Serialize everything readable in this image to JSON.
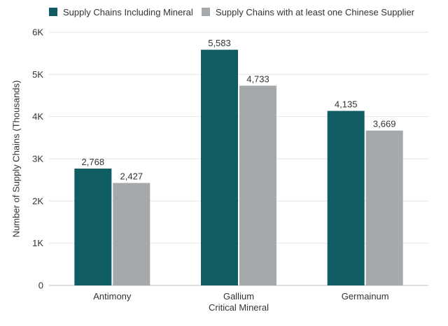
{
  "chart_data": {
    "type": "bar",
    "title": "",
    "xlabel": "Critical Mineral",
    "ylabel": "Number of Supply Chains (Thousands)",
    "categories": [
      "Antimony",
      "Gallium",
      "Germainum"
    ],
    "series": [
      {
        "name": "Supply Chains Including Mineral",
        "color": "#0f5d63",
        "values": [
          2768,
          5583,
          4135
        ],
        "labels": [
          "2,768",
          "5,583",
          "4,135"
        ]
      },
      {
        "name": "Supply Chains with at least one Chinese Supplier",
        "color": "#a6a9ab",
        "values": [
          2427,
          4733,
          3669
        ],
        "labels": [
          "2,427",
          "4,733",
          "3,669"
        ]
      }
    ],
    "ylim": [
      0,
      6000
    ],
    "yticks": [
      {
        "value": 0,
        "label": "0"
      },
      {
        "value": 1000,
        "label": "1K"
      },
      {
        "value": 2000,
        "label": "2K"
      },
      {
        "value": 3000,
        "label": "3K"
      },
      {
        "value": 4000,
        "label": "4K"
      },
      {
        "value": 5000,
        "label": "5K"
      },
      {
        "value": 6000,
        "label": "6K"
      }
    ],
    "grid": true,
    "legend_position": "top-left"
  }
}
